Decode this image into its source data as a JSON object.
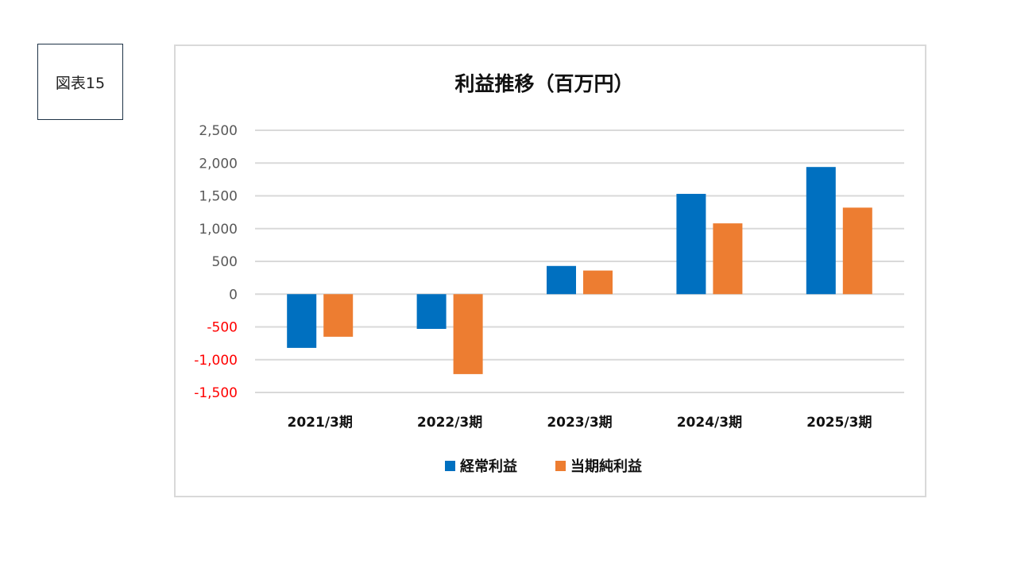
{
  "figure_label": "図表15",
  "colors": {
    "blue": "#0070c0",
    "orange": "#ed7d31",
    "negative_tick": "#ff0000",
    "positive_tick": "#595959",
    "grid": "#d9d9d9"
  },
  "chart_data": {
    "type": "bar",
    "title": "利益推移（百万円）",
    "xlabel": "",
    "ylabel": "",
    "categories": [
      "2021/3期",
      "2022/3期",
      "2023/3期",
      "2024/3期",
      "2025/3期"
    ],
    "series": [
      {
        "name": "経常利益",
        "color": "#0070c0",
        "values": [
          -820,
          -530,
          430,
          1530,
          1940
        ]
      },
      {
        "name": "当期純利益",
        "color": "#ed7d31",
        "values": [
          -650,
          -1220,
          360,
          1080,
          1320
        ]
      }
    ],
    "ylim": [
      -1500,
      2500
    ],
    "yticks": [
      2500,
      2000,
      1500,
      1000,
      500,
      0,
      -500,
      -1000,
      -1500
    ],
    "ytick_labels": [
      "2,500",
      "2,000",
      "1,500",
      "1,000",
      "500",
      "0",
      "-500",
      "-1,000",
      "-1,500"
    ],
    "grid": true,
    "legend_position": "bottom"
  }
}
